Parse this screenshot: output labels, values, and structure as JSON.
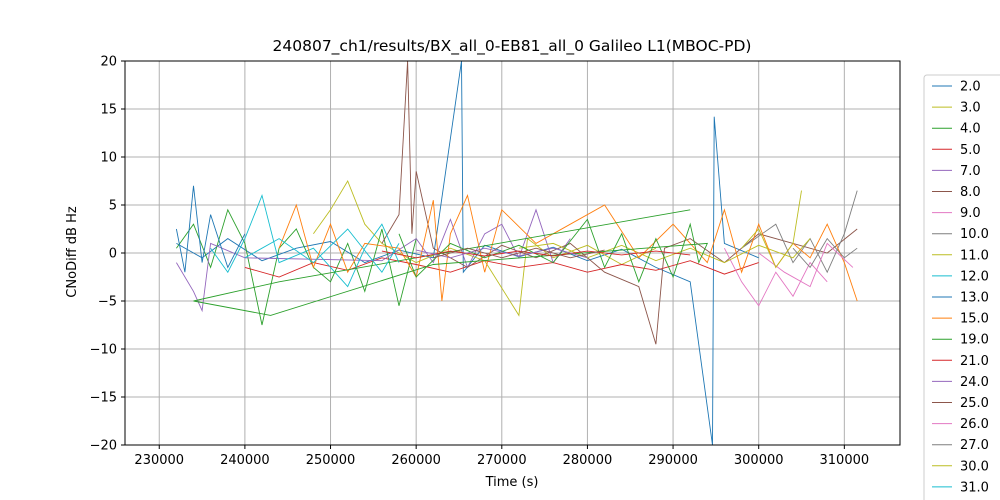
{
  "chart_data": {
    "type": "line",
    "title": "240807_ch1/results/BX_all_0-EB81_all_0 Galileo L1(MBOC-PD)",
    "xlabel": "Time (s)",
    "ylabel": "CNoDiff dB Hz",
    "xlim": [
      226000,
      316500
    ],
    "ylim": [
      -20,
      20
    ],
    "xticks": [
      230000,
      240000,
      250000,
      260000,
      270000,
      280000,
      290000,
      300000,
      310000
    ],
    "xtick_labels": [
      "230000",
      "240000",
      "250000",
      "260000",
      "270000",
      "280000",
      "290000",
      "300000",
      "310000"
    ],
    "yticks": [
      -20,
      -15,
      -10,
      -5,
      0,
      5,
      10,
      15,
      20
    ],
    "ytick_labels": [
      "−20",
      "−15",
      "−10",
      "−5",
      "0",
      "5",
      "10",
      "15",
      "20"
    ],
    "grid": true,
    "legend_position": "outside-right",
    "series": [
      {
        "name": "2.0",
        "color": "#1f77b4",
        "points": [
          [
            232000,
            1.0
          ],
          [
            235000,
            -0.5
          ],
          [
            238000,
            1.5
          ],
          [
            242000,
            -0.8
          ],
          [
            246000,
            0.5
          ],
          [
            250000,
            1.2
          ],
          [
            254000,
            -1.0
          ],
          [
            258000,
            0.3
          ],
          [
            262000,
            -0.5
          ],
          [
            265300,
            20.0
          ],
          [
            265500,
            -2.0
          ],
          [
            268000,
            0.8
          ],
          [
            272000,
            -0.4
          ],
          [
            276000,
            0.6
          ],
          [
            280000,
            -0.8
          ],
          [
            284000,
            0.4
          ],
          [
            288000,
            -1.5
          ],
          [
            292000,
            -3.0
          ],
          [
            294600,
            -20.0
          ],
          [
            294800,
            14.2
          ],
          [
            296000,
            1.0
          ],
          [
            300000,
            -0.5
          ]
        ]
      },
      {
        "name": "3.0",
        "color": "#bcbd22",
        "points": [
          [
            248000,
            2.0
          ],
          [
            250000,
            4.5
          ],
          [
            252000,
            7.5
          ],
          [
            254000,
            3.0
          ],
          [
            256000,
            1.0
          ],
          [
            260000,
            -1.0
          ],
          [
            264000,
            0.5
          ],
          [
            268000,
            -0.8
          ],
          [
            272000,
            -6.5
          ],
          [
            273000,
            1.5
          ],
          [
            276000,
            -0.5
          ],
          [
            280000,
            0.8
          ],
          [
            284000,
            -1.2
          ],
          [
            288000,
            0.5
          ]
        ]
      },
      {
        "name": "4.0",
        "color": "#2ca02c",
        "points": [
          [
            232000,
            0.5
          ],
          [
            234000,
            3.0
          ],
          [
            236000,
            -1.5
          ],
          [
            238000,
            4.5
          ],
          [
            240000,
            1.0
          ],
          [
            242000,
            -7.5
          ],
          [
            244000,
            0.5
          ],
          [
            246000,
            2.5
          ],
          [
            248000,
            -1.5
          ],
          [
            250000,
            -3.0
          ],
          [
            252000,
            1.0
          ],
          [
            254000,
            -4.0
          ],
          [
            256000,
            2.5
          ],
          [
            258000,
            -5.5
          ],
          [
            260000,
            1.5
          ]
        ]
      },
      {
        "name": "5.0",
        "color": "#d62728",
        "points": [
          [
            240000,
            -1.5
          ],
          [
            244000,
            -2.5
          ],
          [
            248000,
            -1.0
          ],
          [
            252000,
            -1.8
          ],
          [
            256000,
            -0.5
          ],
          [
            260000,
            -1.2
          ],
          [
            264000,
            -2.0
          ],
          [
            268000,
            -0.8
          ],
          [
            272000,
            -1.5
          ],
          [
            276000,
            -1.0
          ],
          [
            280000,
            -2.0
          ],
          [
            284000,
            -1.2
          ],
          [
            288000,
            -1.8
          ],
          [
            292000,
            -0.8
          ],
          [
            296000,
            -2.2
          ],
          [
            300000,
            -1.0
          ]
        ]
      },
      {
        "name": "7.0",
        "color": "#9467bd",
        "points": [
          [
            232000,
            -1.0
          ],
          [
            234000,
            -4.0
          ],
          [
            235000,
            -6.0
          ],
          [
            236000,
            1.0
          ],
          [
            240000,
            -0.5
          ],
          [
            256000,
            -0.8
          ],
          [
            260000,
            1.5
          ],
          [
            262000,
            -1.0
          ],
          [
            264000,
            3.5
          ],
          [
            266000,
            -1.5
          ],
          [
            268000,
            2.0
          ],
          [
            270000,
            3.0
          ],
          [
            272000,
            -0.5
          ],
          [
            274000,
            4.5
          ],
          [
            276000,
            -1.0
          ],
          [
            278000,
            1.5
          ]
        ]
      },
      {
        "name": "8.0",
        "color": "#8c564b",
        "points": [
          [
            256000,
            1.0
          ],
          [
            258000,
            4.0
          ],
          [
            259000,
            20.0
          ],
          [
            259500,
            2.0
          ],
          [
            260000,
            8.5
          ],
          [
            262000,
            0.5
          ],
          [
            266000,
            -1.5
          ],
          [
            270000,
            0.8
          ],
          [
            274000,
            -0.5
          ],
          [
            278000,
            1.0
          ],
          [
            282000,
            -2.0
          ],
          [
            286000,
            -3.5
          ],
          [
            288000,
            -9.5
          ],
          [
            289000,
            0.5
          ],
          [
            292000,
            1.5
          ],
          [
            296000,
            -1.0
          ],
          [
            300000,
            2.0
          ],
          [
            304000,
            1.0
          ],
          [
            308000,
            0.0
          ],
          [
            311500,
            2.5
          ]
        ]
      },
      {
        "name": "9.0",
        "color": "#e377c2",
        "points": [
          [
            296000,
            0.5
          ],
          [
            298000,
            -3.0
          ],
          [
            300000,
            -5.5
          ],
          [
            302000,
            -2.0
          ],
          [
            304000,
            -4.5
          ],
          [
            306000,
            -1.0
          ],
          [
            308000,
            -3.0
          ]
        ]
      },
      {
        "name": "10.0",
        "color": "#7f7f7f",
        "points": [
          [
            298000,
            0.5
          ],
          [
            302000,
            3.0
          ],
          [
            304000,
            -1.0
          ],
          [
            306000,
            1.5
          ],
          [
            308000,
            -2.0
          ],
          [
            310000,
            2.0
          ],
          [
            311500,
            6.5
          ]
        ]
      },
      {
        "name": "11.0",
        "color": "#bcbd22",
        "points": [
          [
            272000,
            0.5
          ],
          [
            276000,
            1.0
          ],
          [
            280000,
            -0.5
          ],
          [
            284000,
            0.8
          ],
          [
            288000,
            -0.8
          ],
          [
            292000,
            0.5
          ],
          [
            296000,
            -1.0
          ],
          [
            300000,
            0.8
          ],
          [
            304000,
            -0.5
          ],
          [
            306000,
            1.5
          ]
        ]
      },
      {
        "name": "12.0",
        "color": "#17becf",
        "points": [
          [
            236000,
            0.5
          ],
          [
            238000,
            -2.0
          ],
          [
            240000,
            1.5
          ],
          [
            242000,
            6.0
          ],
          [
            244000,
            -1.0
          ],
          [
            248000,
            0.5
          ],
          [
            252000,
            -3.5
          ],
          [
            254000,
            0.5
          ],
          [
            256000,
            3.0
          ],
          [
            258000,
            -1.0
          ]
        ]
      },
      {
        "name": "13.0",
        "color": "#1f77b4",
        "points": [
          [
            232000,
            2.5
          ],
          [
            233000,
            -2.0
          ],
          [
            234000,
            7.0
          ],
          [
            235000,
            -1.0
          ],
          [
            236000,
            4.0
          ],
          [
            238000,
            -1.5
          ],
          [
            240000,
            2.0
          ]
        ]
      },
      {
        "name": "15.0",
        "color": "#ff7f0e",
        "points": [
          [
            244000,
            0.5
          ],
          [
            246000,
            5.0
          ],
          [
            248000,
            -1.5
          ],
          [
            250000,
            3.0
          ],
          [
            252000,
            -2.0
          ],
          [
            254000,
            1.0
          ],
          [
            258000,
            0.5
          ],
          [
            260000,
            -2.5
          ],
          [
            262000,
            5.5
          ],
          [
            263000,
            -5.0
          ],
          [
            264000,
            2.0
          ],
          [
            266000,
            6.0
          ],
          [
            268000,
            -2.0
          ],
          [
            270000,
            4.5
          ],
          [
            274000,
            1.0
          ],
          [
            278000,
            3.0
          ],
          [
            282000,
            5.0
          ],
          [
            286000,
            -0.5
          ],
          [
            290000,
            3.0
          ],
          [
            294000,
            -1.0
          ],
          [
            296000,
            4.5
          ],
          [
            298000,
            -2.0
          ],
          [
            300000,
            3.0
          ],
          [
            302000,
            -1.5
          ],
          [
            304000,
            1.0
          ],
          [
            306000,
            -0.5
          ],
          [
            308000,
            3.0
          ],
          [
            310000,
            -1.0
          ],
          [
            311500,
            -5.0
          ]
        ]
      },
      {
        "name": "19.0",
        "color": "#2ca02c",
        "points": [
          [
            258000,
            2.0
          ],
          [
            260000,
            -2.5
          ],
          [
            264000,
            1.0
          ],
          [
            268000,
            -0.5
          ],
          [
            272000,
            0.8
          ],
          [
            276000,
            -1.0
          ],
          [
            280000,
            3.5
          ],
          [
            282000,
            -1.5
          ],
          [
            284000,
            2.0
          ],
          [
            286000,
            -3.0
          ],
          [
            288000,
            1.5
          ],
          [
            290000,
            -2.5
          ],
          [
            292000,
            3.0
          ],
          [
            293000,
            -1.0
          ],
          [
            294000,
            1.0
          ],
          [
            262000,
            -1.2
          ],
          [
            243000,
            -6.5
          ],
          [
            234000,
            -5.0
          ],
          [
            244000,
            -3.0
          ],
          [
            292000,
            4.5
          ]
        ]
      },
      {
        "name": "21.0",
        "color": "#d62728",
        "points": [
          [
            256000,
            0.2
          ],
          [
            260000,
            -0.5
          ],
          [
            264000,
            0.2
          ],
          [
            268000,
            -0.3
          ],
          [
            272000,
            0.2
          ],
          [
            276000,
            -0.3
          ],
          [
            280000,
            0.2
          ],
          [
            284000,
            -0.2
          ],
          [
            288000,
            0.2
          ],
          [
            292000,
            -0.2
          ]
        ]
      },
      {
        "name": "24.0",
        "color": "#9467bd",
        "points": [
          [
            260000,
            0.3
          ],
          [
            264000,
            -0.5
          ],
          [
            268000,
            0.5
          ],
          [
            272000,
            -0.3
          ],
          [
            276000,
            0.5
          ],
          [
            280000,
            -0.5
          ]
        ]
      },
      {
        "name": "25.0",
        "color": "#8c564b",
        "points": [
          [
            262000,
            -0.5
          ],
          [
            266000,
            0.5
          ],
          [
            270000,
            -0.5
          ],
          [
            274000,
            0.5
          ],
          [
            278000,
            -0.5
          ],
          [
            282000,
            0.3
          ]
        ]
      },
      {
        "name": "26.0",
        "color": "#e377c2",
        "points": [
          [
            300000,
            0.0
          ],
          [
            303000,
            -2.0
          ],
          [
            306000,
            -3.5
          ],
          [
            308000,
            1.0
          ],
          [
            311000,
            -1.5
          ]
        ]
      },
      {
        "name": "27.0",
        "color": "#7f7f7f",
        "points": [
          [
            304000,
            0.5
          ],
          [
            306000,
            -1.5
          ],
          [
            308000,
            1.5
          ],
          [
            310000,
            -0.5
          ],
          [
            311500,
            0.5
          ]
        ]
      },
      {
        "name": "30.0",
        "color": "#bcbd22",
        "points": [
          [
            298000,
            0.5
          ],
          [
            300000,
            2.5
          ],
          [
            302000,
            -1.5
          ],
          [
            304000,
            1.0
          ],
          [
            305000,
            6.5
          ]
        ]
      },
      {
        "name": "31.0",
        "color": "#17becf",
        "points": [
          [
            240000,
            -0.5
          ],
          [
            244000,
            1.5
          ],
          [
            248000,
            -1.0
          ],
          [
            252000,
            2.5
          ],
          [
            256000,
            -2.0
          ],
          [
            258000,
            1.0
          ]
        ]
      }
    ]
  }
}
